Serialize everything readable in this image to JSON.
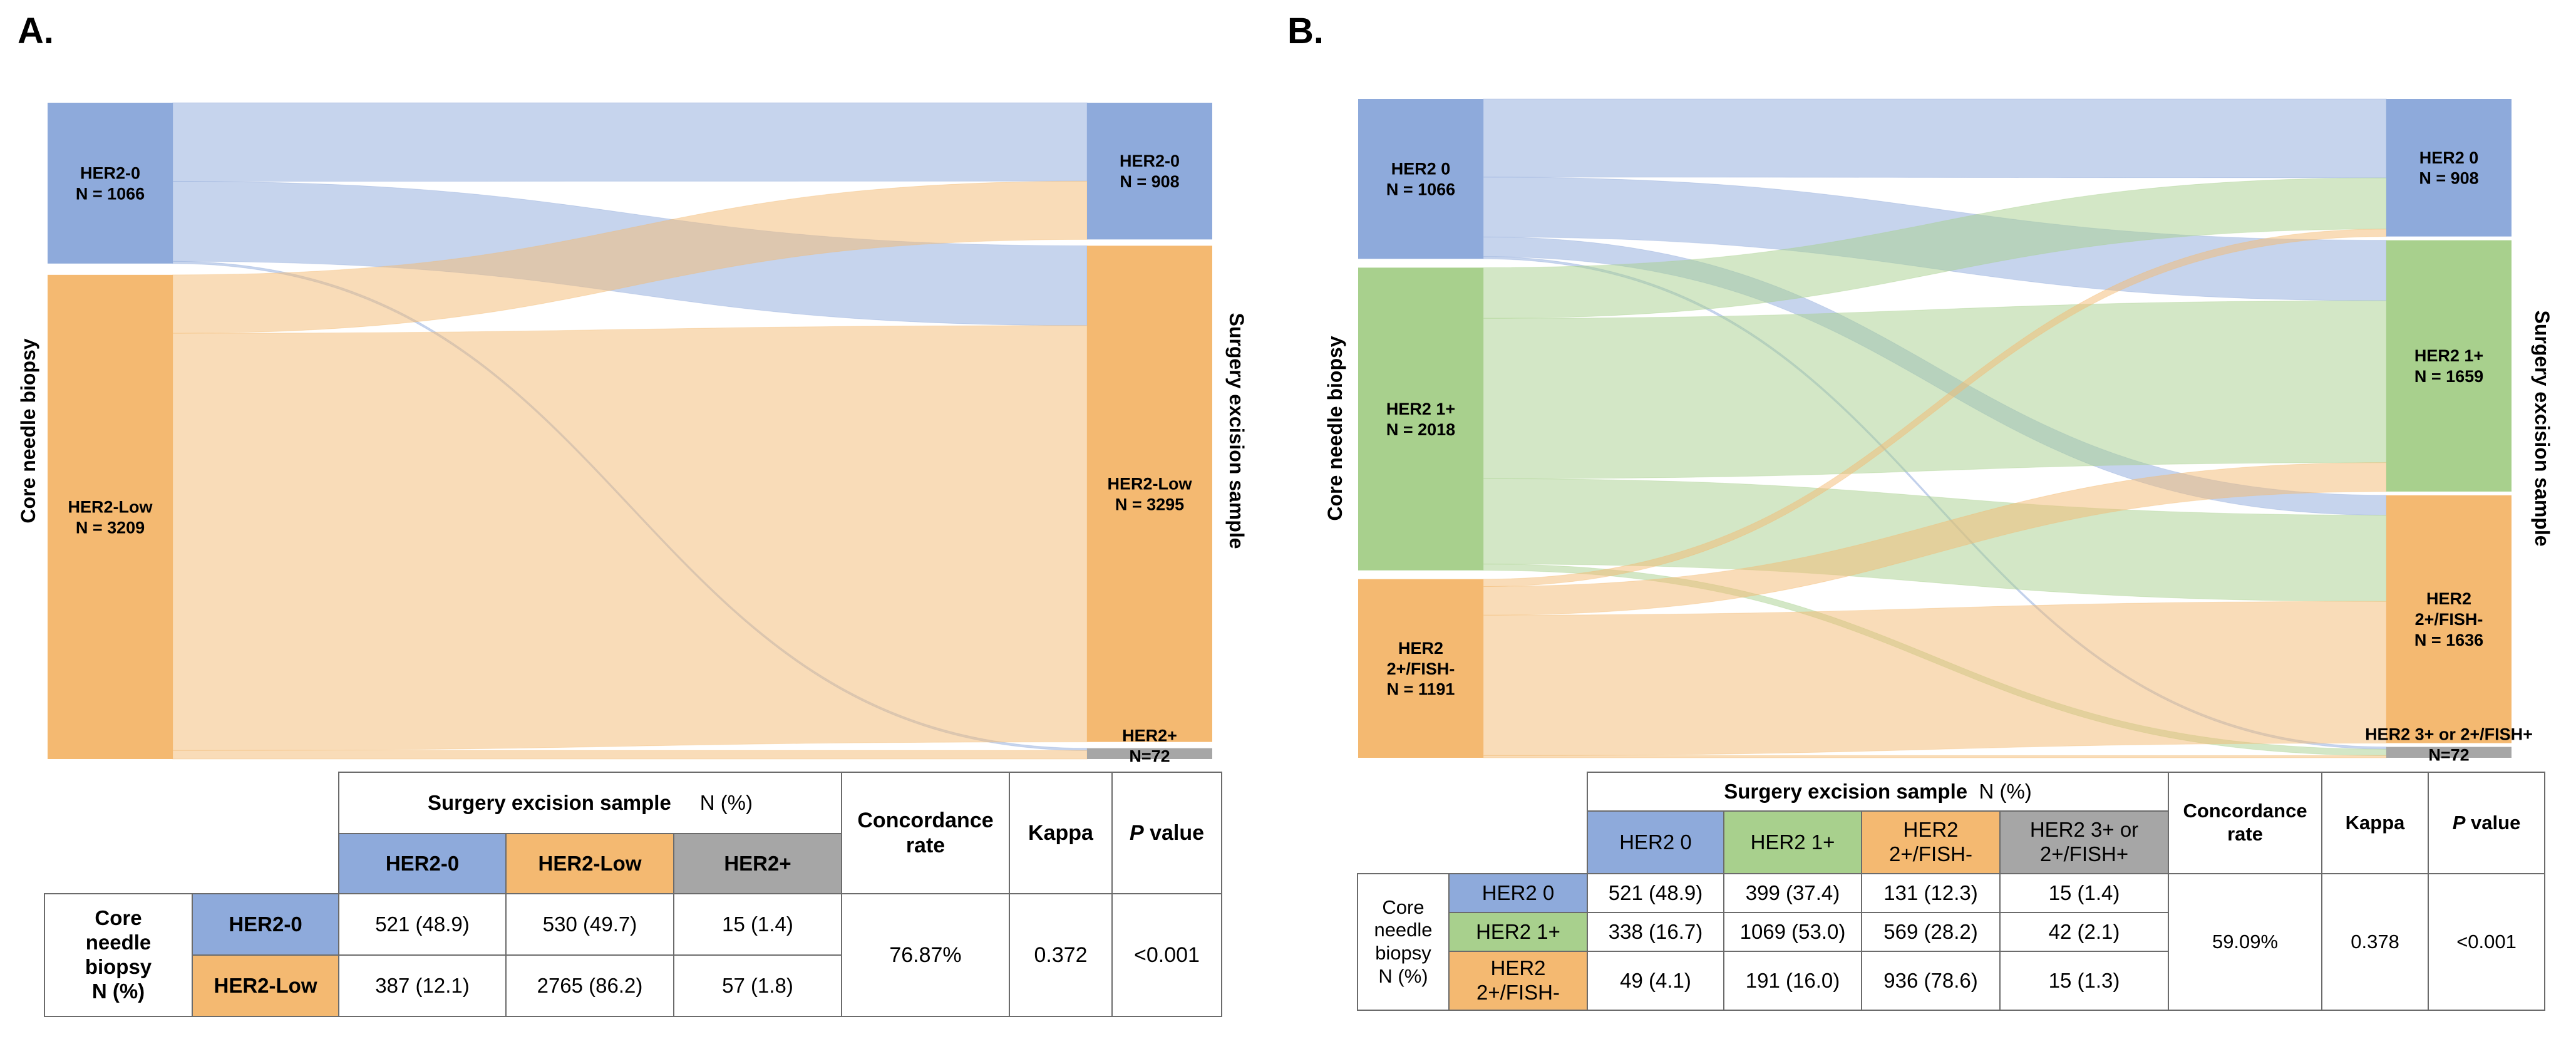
{
  "colors": {
    "her2_0": "#8eaadb",
    "her2_low": "#f4b971",
    "her2_1plus": "#a8d08d",
    "her2_2plus": "#f4b971",
    "her2_pos": "#a6a6a6"
  },
  "panelA": {
    "letter": "A.",
    "left_axis": "Core needle biopsy",
    "right_axis": "Surgery excision sample",
    "left_nodes": [
      {
        "name": "HER2-0",
        "n_label": "N = 1066",
        "n": 1066
      },
      {
        "name": "HER2-Low",
        "n_label": "N = 3209",
        "n": 3209
      }
    ],
    "right_nodes": [
      {
        "name": "HER2-0",
        "n_label": "N = 908",
        "n": 908
      },
      {
        "name": "HER2-Low",
        "n_label": "N = 3295",
        "n": 3295
      },
      {
        "name": "HER2+",
        "n_label": "N=72",
        "n": 72
      }
    ],
    "table": {
      "header_group": "Surgery excision sample",
      "header_unit": "N (%)",
      "col_headers": [
        "HER2-0",
        "HER2-Low",
        "HER2+"
      ],
      "row_group": [
        "Core",
        "needle",
        "biopsy",
        "N (%)"
      ],
      "row_headers": [
        "HER2-0",
        "HER2-Low"
      ],
      "rows": [
        [
          "521 (48.9)",
          "530 (49.7)",
          "15 (1.4)"
        ],
        [
          "387 (12.1)",
          "2765 (86.2)",
          "57 (1.8)"
        ]
      ],
      "stat_headers": {
        "concordance": [
          "Concordance",
          "rate"
        ],
        "kappa": "Kappa",
        "p_italic": "P",
        "p_rest": " value"
      },
      "stats": {
        "concordance": "76.87%",
        "kappa": "0.372",
        "p": "<0.001"
      }
    }
  },
  "panelB": {
    "letter": "B.",
    "left_axis": "Core needle biopsy",
    "right_axis": "Surgery excision sample",
    "left_nodes": [
      {
        "lines": [
          "HER2 0",
          "N = 1066"
        ],
        "n": 1066
      },
      {
        "lines": [
          "HER2 1+",
          "N = 2018"
        ],
        "n": 2018
      },
      {
        "lines": [
          "HER2",
          "2+/FISH-",
          "N = 1191"
        ],
        "n": 1191
      }
    ],
    "right_nodes": [
      {
        "lines": [
          "HER2 0",
          "N = 908"
        ],
        "n": 908
      },
      {
        "lines": [
          "HER2 1+",
          "N = 1659"
        ],
        "n": 1659
      },
      {
        "lines": [
          "HER2",
          "2+/FISH-",
          "N = 1636"
        ],
        "n": 1636
      },
      {
        "lines": [
          "HER2 3+ or 2+/FISH+",
          "N=72"
        ],
        "n": 72
      }
    ],
    "table": {
      "header_group": "Surgery excision sample",
      "header_unit": "N (%)",
      "col_headers": [
        [
          "HER2 0"
        ],
        [
          "HER2 1+"
        ],
        [
          "HER2",
          "2+/FISH-"
        ],
        [
          "HER2 3+ or",
          "2+/FISH+"
        ]
      ],
      "row_group": [
        "Core",
        "needle",
        "biopsy",
        "N (%)"
      ],
      "row_headers": [
        [
          "HER2 0"
        ],
        [
          "HER2 1+"
        ],
        [
          "HER2",
          "2+/FISH-"
        ]
      ],
      "rows": [
        [
          "521 (48.9)",
          "399 (37.4)",
          "131 (12.3)",
          "15 (1.4)"
        ],
        [
          "338 (16.7)",
          "1069 (53.0)",
          "569 (28.2)",
          "42 (2.1)"
        ],
        [
          "49 (4.1)",
          "191 (16.0)",
          "936 (78.6)",
          "15 (1.3)"
        ]
      ],
      "stat_headers": {
        "concordance": [
          "Concordance",
          "rate"
        ],
        "kappa": "Kappa",
        "p_italic": "P",
        "p_rest": " value"
      },
      "stats": {
        "concordance": "59.09%",
        "kappa": "0.378",
        "p": "<0.001"
      }
    }
  },
  "chart_data": [
    {
      "type": "sankey",
      "title": "A.",
      "source_label": "Core needle biopsy",
      "target_label": "Surgery excision sample",
      "sources": [
        "HER2-0",
        "HER2-Low"
      ],
      "targets": [
        "HER2-0",
        "HER2-Low",
        "HER2+"
      ],
      "flows": [
        {
          "from": "HER2-0",
          "to": "HER2-0",
          "value": 521
        },
        {
          "from": "HER2-0",
          "to": "HER2-Low",
          "value": 530
        },
        {
          "from": "HER2-0",
          "to": "HER2+",
          "value": 15
        },
        {
          "from": "HER2-Low",
          "to": "HER2-0",
          "value": 387
        },
        {
          "from": "HER2-Low",
          "to": "HER2-Low",
          "value": 2765
        },
        {
          "from": "HER2-Low",
          "to": "HER2+",
          "value": 57
        }
      ]
    },
    {
      "type": "sankey",
      "title": "B.",
      "source_label": "Core needle biopsy",
      "target_label": "Surgery excision sample",
      "sources": [
        "HER2 0",
        "HER2 1+",
        "HER2 2+/FISH-"
      ],
      "targets": [
        "HER2 0",
        "HER2 1+",
        "HER2 2+/FISH-",
        "HER2 3+ or 2+/FISH+"
      ],
      "flows": [
        {
          "from": "HER2 0",
          "to": "HER2 0",
          "value": 521
        },
        {
          "from": "HER2 0",
          "to": "HER2 1+",
          "value": 399
        },
        {
          "from": "HER2 0",
          "to": "HER2 2+/FISH-",
          "value": 131
        },
        {
          "from": "HER2 0",
          "to": "HER2 3+ or 2+/FISH+",
          "value": 15
        },
        {
          "from": "HER2 1+",
          "to": "HER2 0",
          "value": 338
        },
        {
          "from": "HER2 1+",
          "to": "HER2 1+",
          "value": 1069
        },
        {
          "from": "HER2 1+",
          "to": "HER2 2+/FISH-",
          "value": 569
        },
        {
          "from": "HER2 1+",
          "to": "HER2 3+ or 2+/FISH+",
          "value": 42
        },
        {
          "from": "HER2 2+/FISH-",
          "to": "HER2 0",
          "value": 49
        },
        {
          "from": "HER2 2+/FISH-",
          "to": "HER2 1+",
          "value": 191
        },
        {
          "from": "HER2 2+/FISH-",
          "to": "HER2 2+/FISH-",
          "value": 936
        },
        {
          "from": "HER2 2+/FISH-",
          "to": "HER2 3+ or 2+/FISH+",
          "value": 15
        }
      ]
    }
  ]
}
